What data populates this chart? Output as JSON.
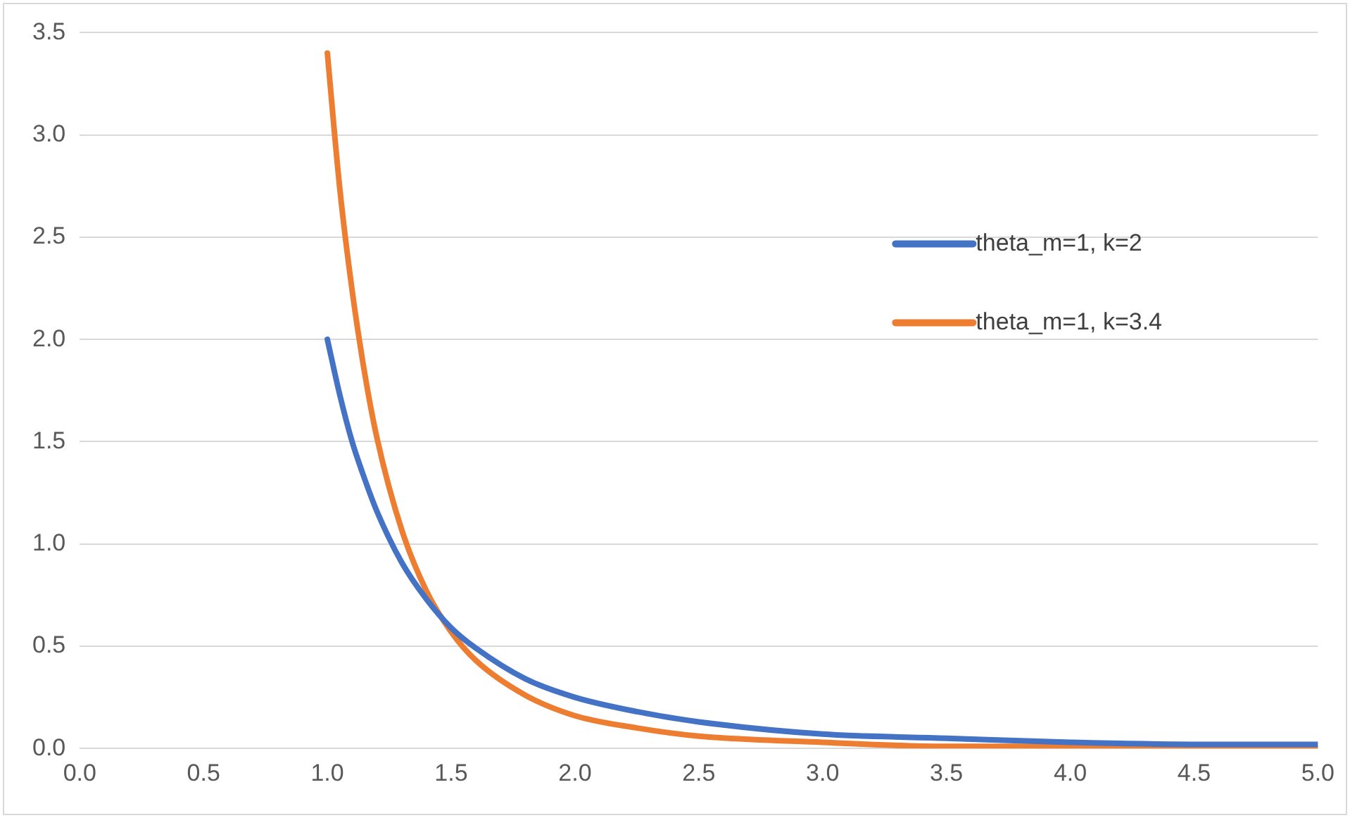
{
  "chart_data": {
    "type": "line",
    "x": [
      1,
      1.05,
      1.1,
      1.15,
      1.2,
      1.3,
      1.4,
      1.5,
      1.6,
      1.8,
      2,
      2.25,
      2.5,
      3,
      3.5,
      4,
      4.5,
      5
    ],
    "series": [
      {
        "name": "theta_m=1, k=2",
        "color": "#4472c4",
        "values": [
          2,
          1.73,
          1.5,
          1.32,
          1.16,
          0.91,
          0.73,
          0.59,
          0.49,
          0.34,
          0.25,
          0.18,
          0.13,
          0.07,
          0.05,
          0.03,
          0.02,
          0.02
        ]
      },
      {
        "name": "theta_m=1, k=3.4",
        "color": "#ed7d31",
        "values": [
          3.4,
          2.74,
          2.24,
          1.84,
          1.52,
          1.07,
          0.77,
          0.57,
          0.43,
          0.26,
          0.16,
          0.1,
          0.06,
          0.03,
          0.01,
          0.01,
          0.01,
          0.0
        ]
      }
    ],
    "xlim": [
      0,
      5
    ],
    "xticks": [
      {
        "value": 0,
        "label": "0.0"
      },
      {
        "value": 0.5,
        "label": "0.5"
      },
      {
        "value": 1,
        "label": "1.0"
      },
      {
        "value": 1.5,
        "label": "1.5"
      },
      {
        "value": 2,
        "label": "2.0"
      },
      {
        "value": 2.5,
        "label": "2.5"
      },
      {
        "value": 3,
        "label": "3.0"
      },
      {
        "value": 3.5,
        "label": "3.5"
      },
      {
        "value": 4,
        "label": "4.0"
      },
      {
        "value": 4.5,
        "label": "4.5"
      },
      {
        "value": 5,
        "label": "5.0"
      }
    ],
    "ylim": [
      0,
      3.5
    ],
    "yticks": [
      {
        "value": 0,
        "label": "0.0"
      },
      {
        "value": 0.5,
        "label": "0.5"
      },
      {
        "value": 1,
        "label": "1.0"
      },
      {
        "value": 1.5,
        "label": "1.5"
      },
      {
        "value": 2,
        "label": "2.0"
      },
      {
        "value": 2.5,
        "label": "2.5"
      },
      {
        "value": 3,
        "label": "3.0"
      },
      {
        "value": 3.5,
        "label": "3.5"
      }
    ],
    "grid": "y",
    "legend": "right",
    "marker": "none",
    "line_style": "solid"
  }
}
